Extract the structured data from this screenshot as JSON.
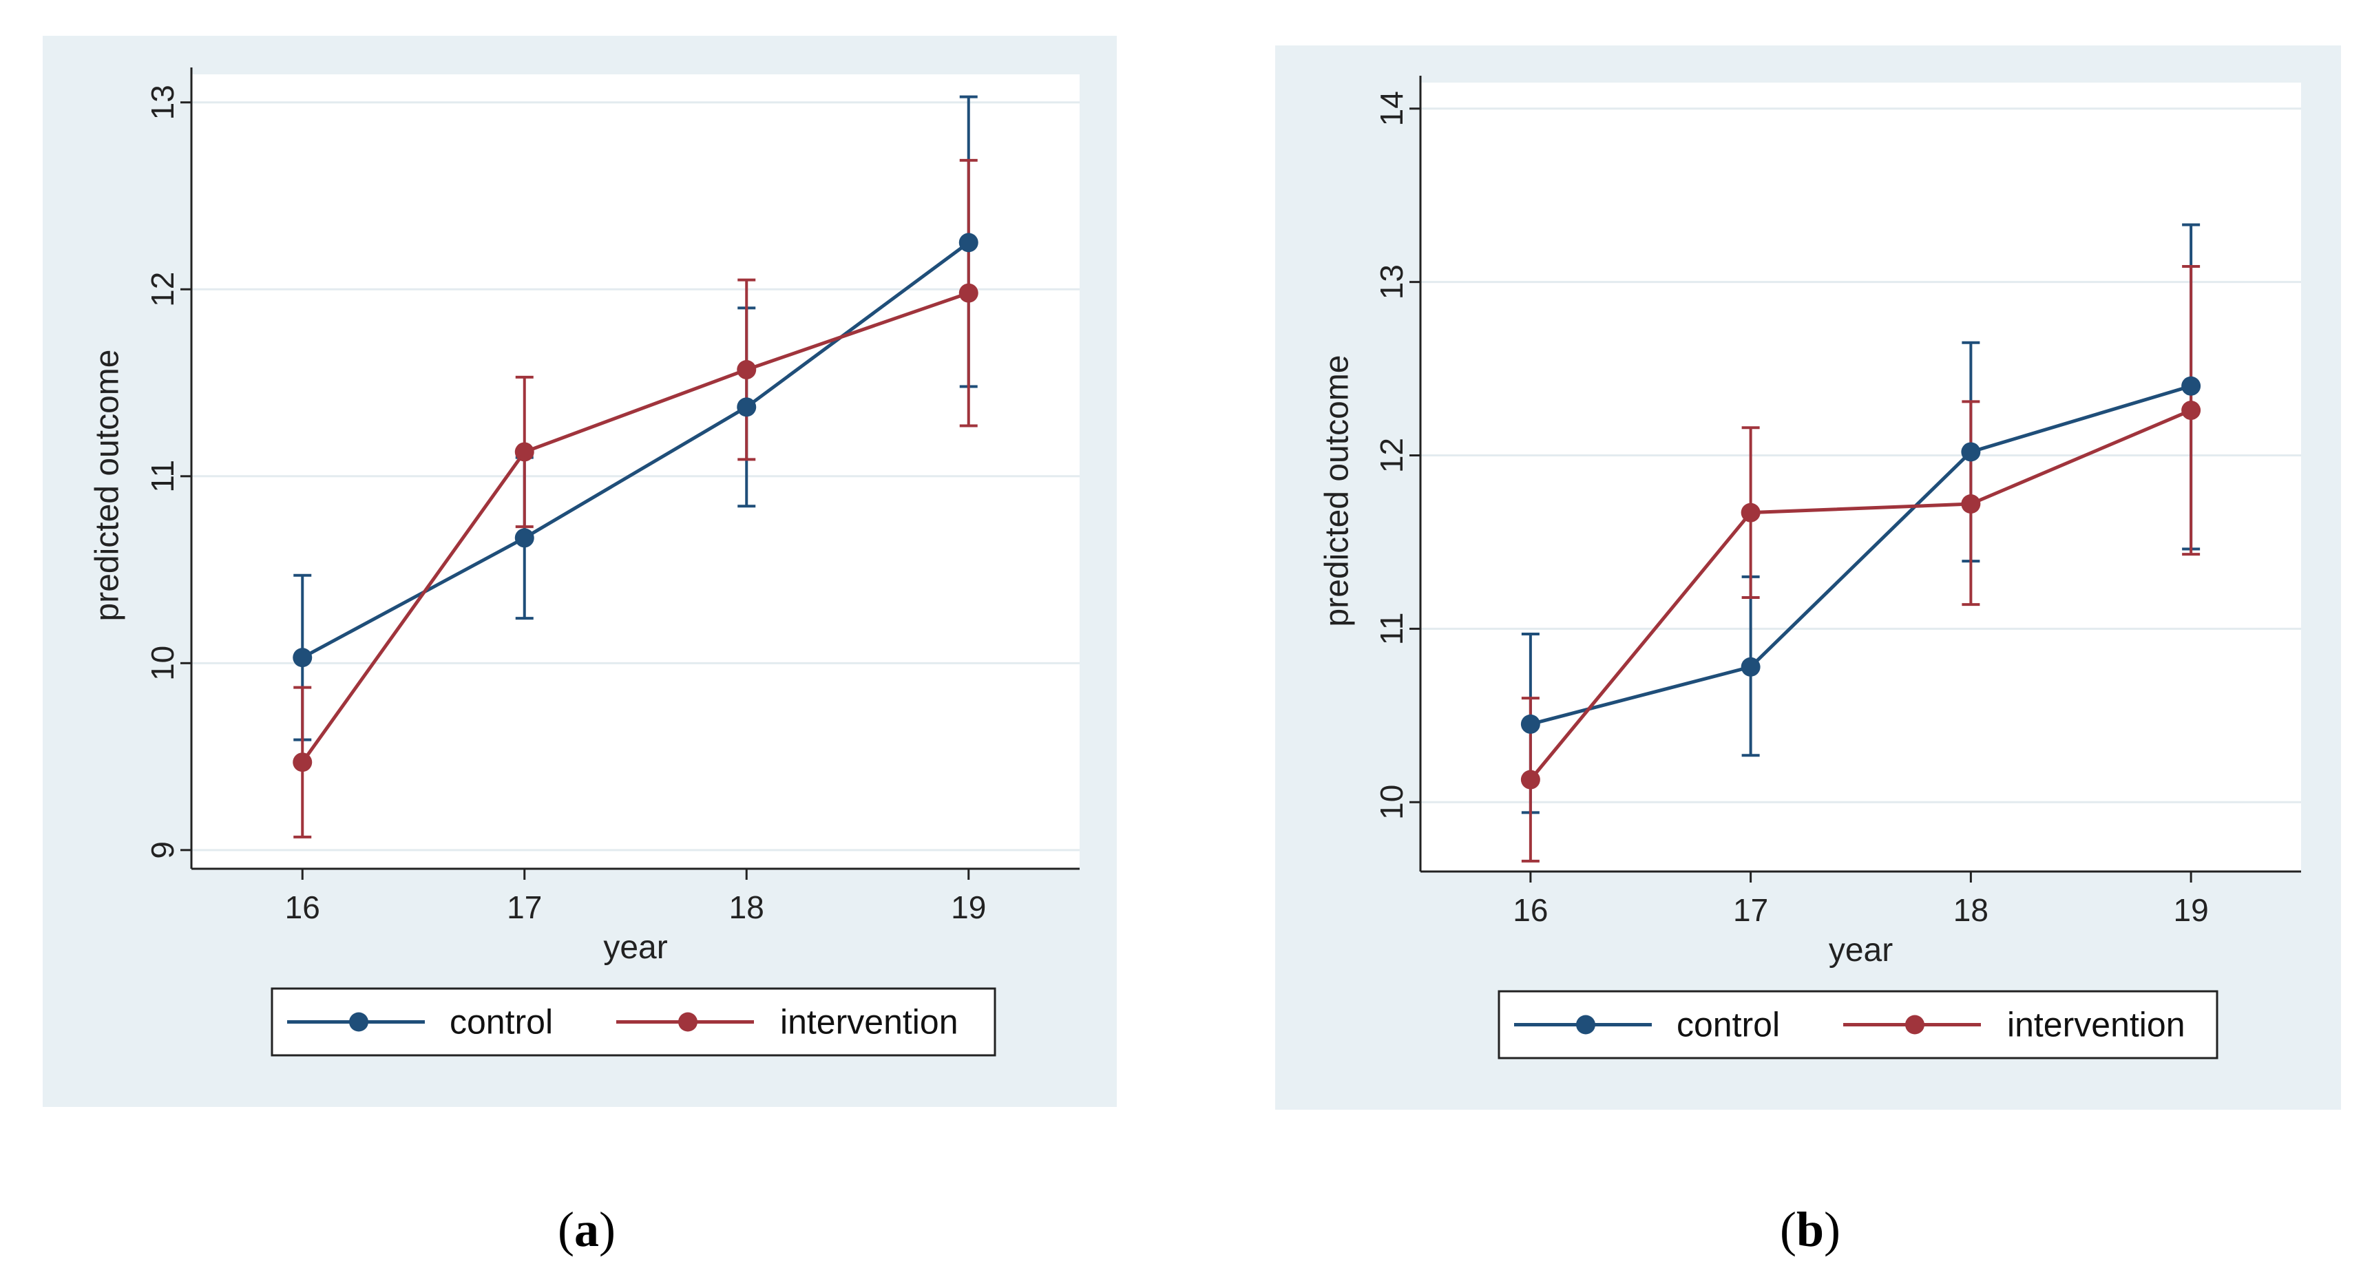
{
  "chart_data": [
    {
      "panel": "a",
      "type": "line",
      "title": "",
      "xlabel": "year",
      "ylabel": "predicted outcome",
      "x": [
        16,
        17,
        18,
        19
      ],
      "xticks": [
        "16",
        "17",
        "18",
        "19"
      ],
      "yticks": [
        "9",
        "10",
        "11",
        "12",
        "13"
      ],
      "ylim": [
        8.9,
        13.15
      ],
      "xlim": [
        15.5,
        19.5
      ],
      "grid": true,
      "legend_position": "bottom",
      "series": [
        {
          "name": "control",
          "color": "#1f4e79",
          "values": [
            10.03,
            10.67,
            11.37,
            12.25
          ],
          "ci_low": [
            9.59,
            10.24,
            10.84,
            11.48
          ],
          "ci_high": [
            10.47,
            11.1,
            11.9,
            13.03
          ]
        },
        {
          "name": "intervention",
          "color": "#a0343c",
          "values": [
            9.47,
            11.13,
            11.57,
            11.98
          ],
          "ci_low": [
            9.07,
            10.73,
            11.09,
            11.27
          ],
          "ci_high": [
            9.87,
            11.53,
            12.05,
            12.69
          ]
        }
      ]
    },
    {
      "panel": "b",
      "type": "line",
      "title": "",
      "xlabel": "year",
      "ylabel": "predicted outcome",
      "x": [
        16,
        17,
        18,
        19
      ],
      "xticks": [
        "16",
        "17",
        "18",
        "19"
      ],
      "yticks": [
        "10",
        "11",
        "12",
        "13",
        "14"
      ],
      "ylim": [
        9.6,
        14.15
      ],
      "xlim": [
        15.5,
        19.5
      ],
      "grid": true,
      "legend_position": "bottom",
      "series": [
        {
          "name": "control",
          "color": "#1f4e79",
          "values": [
            10.45,
            10.78,
            12.02,
            12.4
          ],
          "ci_low": [
            9.94,
            10.27,
            11.39,
            11.46
          ],
          "ci_high": [
            10.97,
            11.3,
            12.65,
            13.33
          ]
        },
        {
          "name": "intervention",
          "color": "#a0343c",
          "values": [
            10.13,
            11.67,
            11.72,
            12.26
          ],
          "ci_low": [
            9.66,
            11.18,
            11.14,
            11.43
          ],
          "ci_high": [
            10.6,
            12.16,
            12.31,
            13.09
          ]
        }
      ]
    }
  ],
  "captions": {
    "a": {
      "open": "(",
      "letter": "a",
      "close": ")"
    },
    "b": {
      "open": "(",
      "letter": "b",
      "close": ")"
    }
  }
}
